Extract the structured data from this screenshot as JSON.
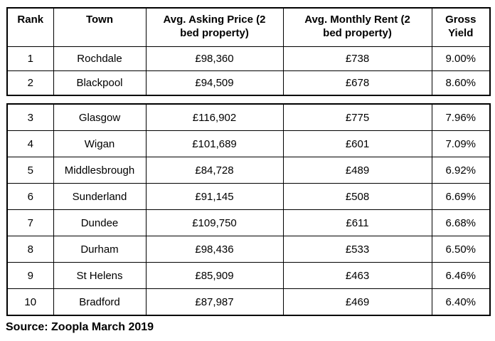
{
  "table": {
    "headers": {
      "rank": "Rank",
      "town": "Town",
      "asking_price": "Avg. Asking Price (2\nbed property)",
      "monthly_rent": "Avg. Monthly Rent (2\nbed property)",
      "gross_yield": "Gross\nYield"
    },
    "rows": [
      {
        "rank": "1",
        "town": "Rochdale",
        "asking_price": "£98,360",
        "monthly_rent": "£738",
        "gross_yield": "9.00%"
      },
      {
        "rank": "2",
        "town": "Blackpool",
        "asking_price": "£94,509",
        "monthly_rent": "£678",
        "gross_yield": "8.60%"
      },
      {
        "rank": "3",
        "town": "Glasgow",
        "asking_price": "£116,902",
        "monthly_rent": "£775",
        "gross_yield": "7.96%"
      },
      {
        "rank": "4",
        "town": "Wigan",
        "asking_price": "£101,689",
        "monthly_rent": "£601",
        "gross_yield": "7.09%"
      },
      {
        "rank": "5",
        "town": "Middlesbrough",
        "asking_price": "£84,728",
        "monthly_rent": "£489",
        "gross_yield": "6.92%"
      },
      {
        "rank": "6",
        "town": "Sunderland",
        "asking_price": "£91,145",
        "monthly_rent": "£508",
        "gross_yield": "6.69%"
      },
      {
        "rank": "7",
        "town": "Dundee",
        "asking_price": "£109,750",
        "monthly_rent": "£611",
        "gross_yield": "6.68%"
      },
      {
        "rank": "8",
        "town": "Durham",
        "asking_price": "£98,436",
        "monthly_rent": "£533",
        "gross_yield": "6.50%"
      },
      {
        "rank": "9",
        "town": "St Helens",
        "asking_price": "£85,909",
        "monthly_rent": "£463",
        "gross_yield": "6.46%"
      },
      {
        "rank": "10",
        "town": "Bradford",
        "asking_price": "£87,987",
        "monthly_rent": "£469",
        "gross_yield": "6.40%"
      }
    ]
  },
  "source_note": "Source: Zoopla March 2019",
  "colors": {
    "border": "#000000",
    "text": "#000000",
    "background": "#ffffff"
  }
}
